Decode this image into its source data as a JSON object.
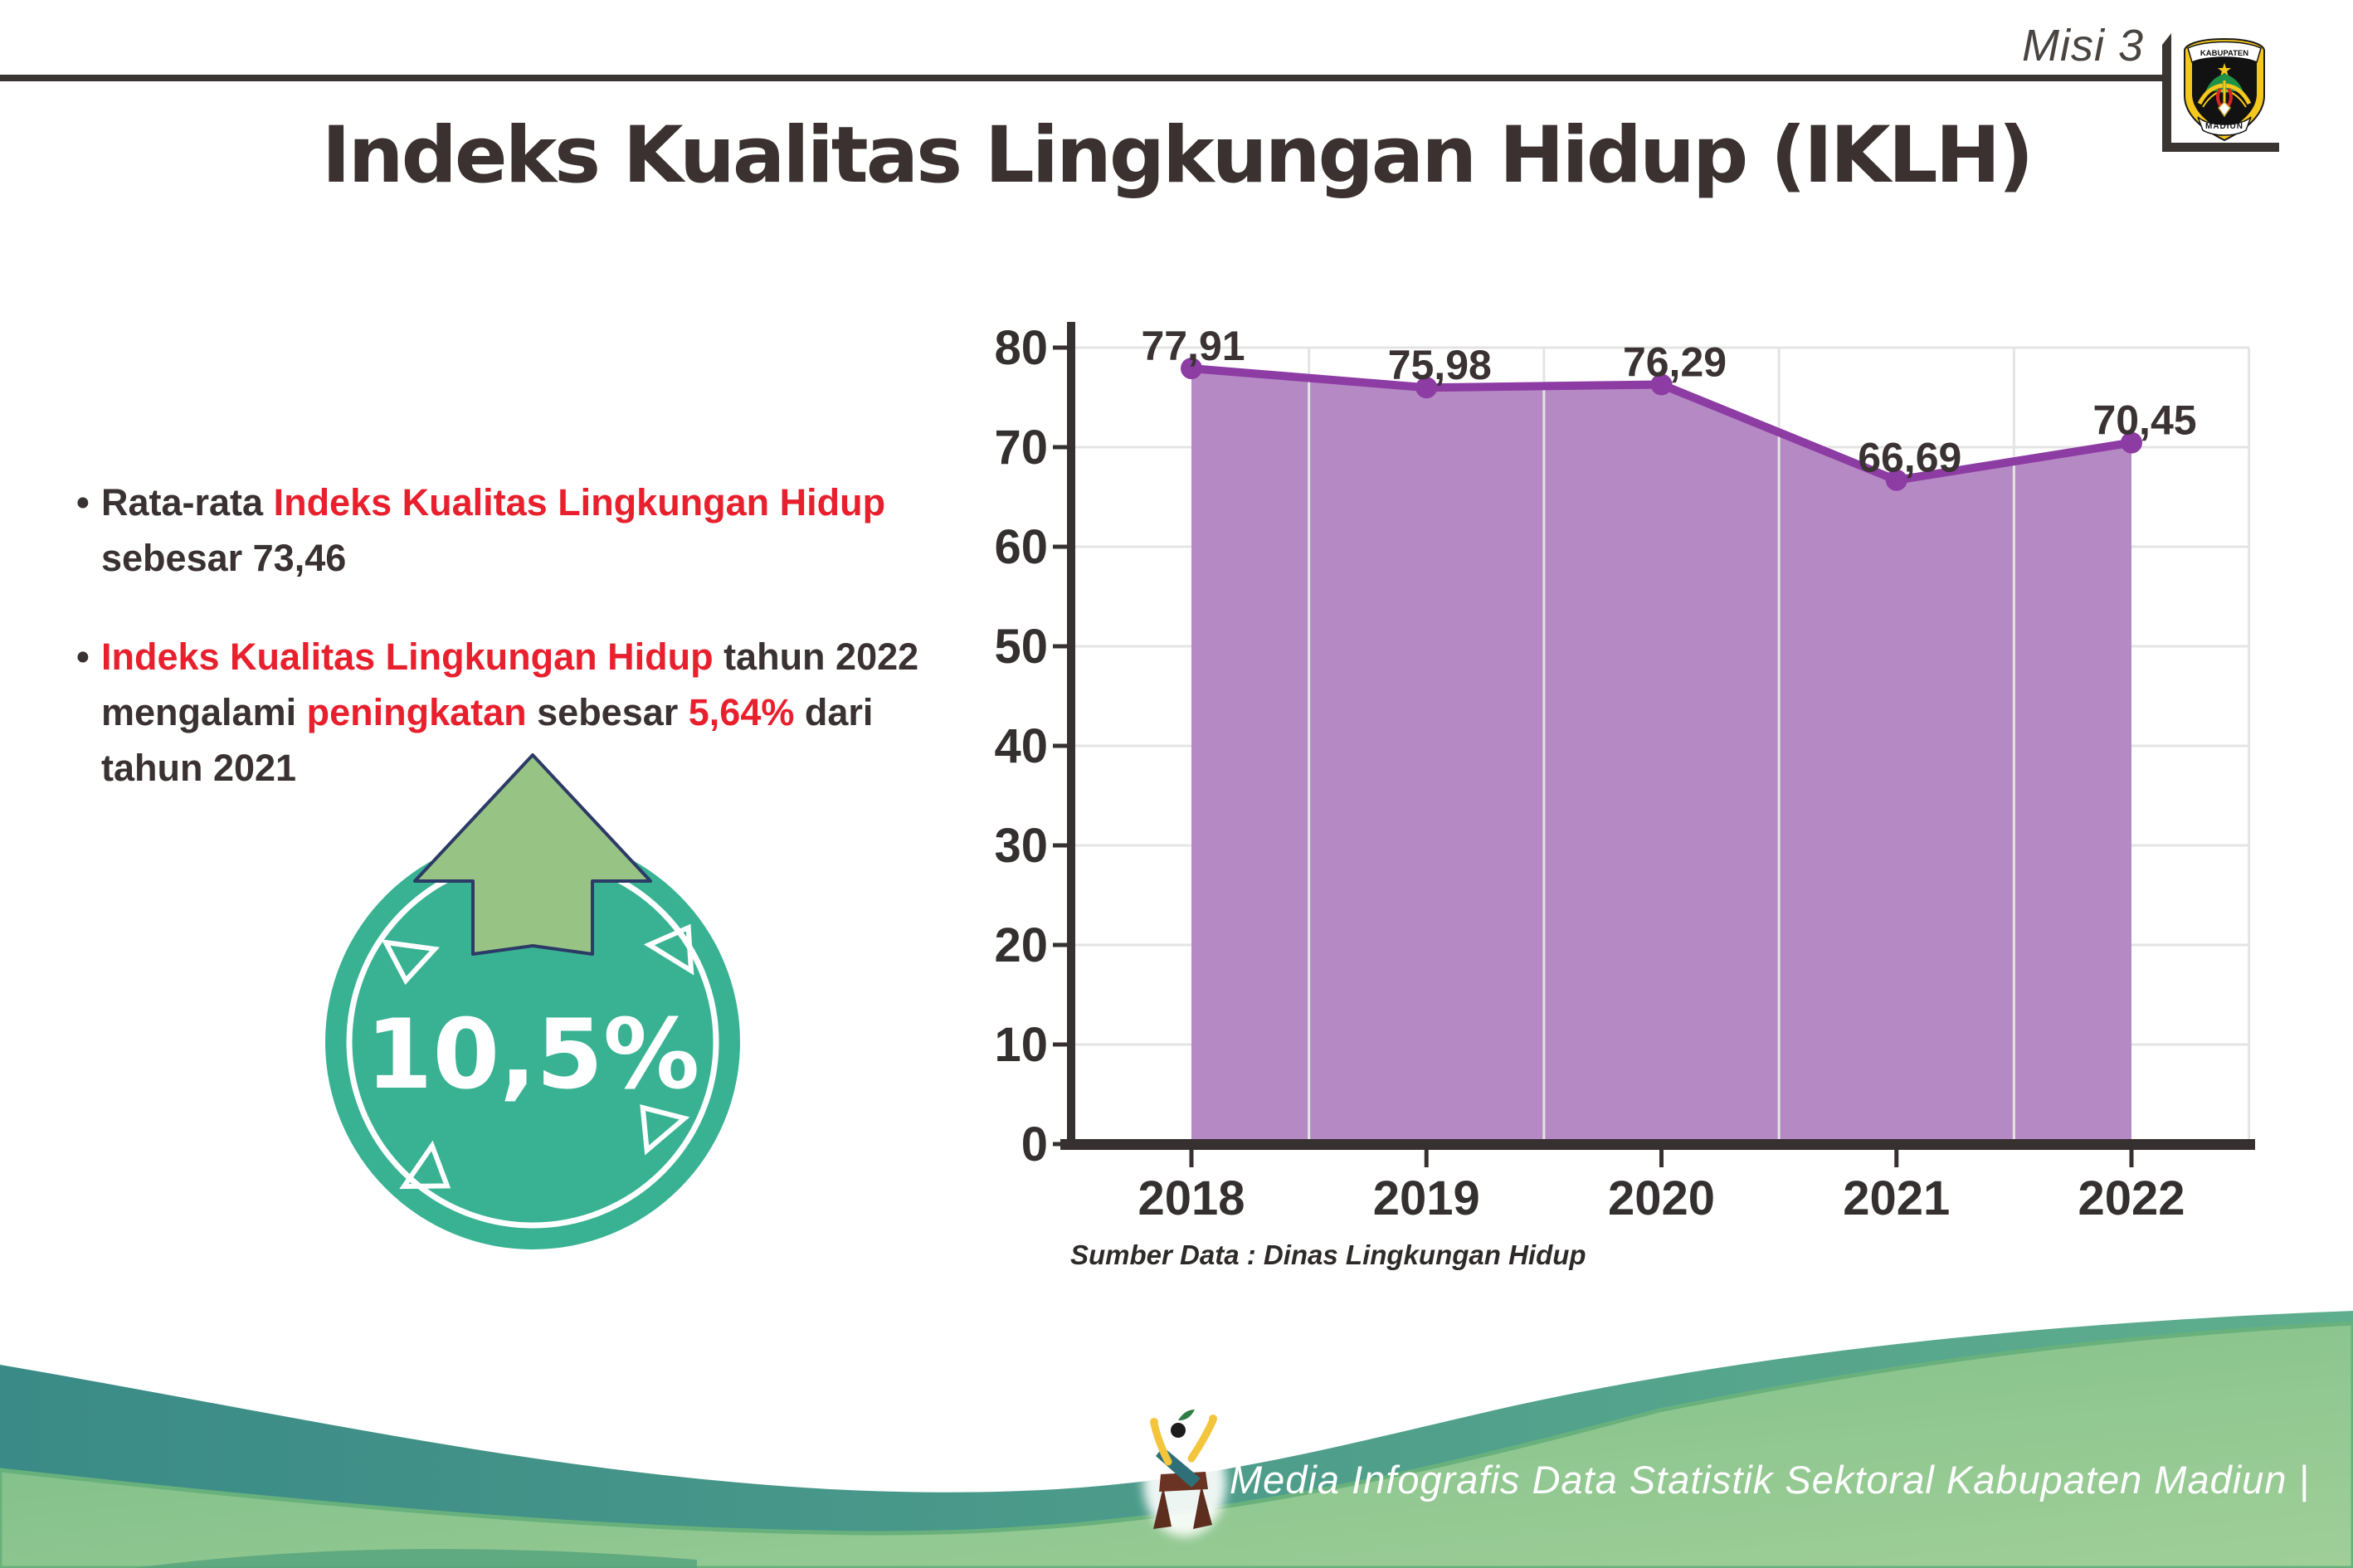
{
  "header": {
    "misi_label": "Misi 3"
  },
  "logo": {
    "top_text": "KABUPATEN",
    "bottom_text": "MADIUN"
  },
  "title": "Indeks Kualitas Lingkungan Hidup (IKLH)",
  "bullets": [
    {
      "marker": "•",
      "lines": [
        [
          {
            "t": "Rata-rata ",
            "c": "dark"
          },
          {
            "t": "Indeks Kualitas Lingkungan Hidup",
            "c": "red"
          }
        ],
        [
          {
            "t": "sebesar 73,46",
            "c": "dark"
          }
        ]
      ]
    },
    {
      "marker": "•",
      "lines": [
        [
          {
            "t": "Indeks Kualitas Lingkungan Hidup",
            "c": "red"
          },
          {
            "t": " tahun 2022",
            "c": "dark"
          }
        ],
        [
          {
            "t": "mengalami ",
            "c": "dark"
          },
          {
            "t": "peningkatan",
            "c": "red"
          },
          {
            "t": " sebesar ",
            "c": "dark"
          },
          {
            "t": "5,64%",
            "c": "red"
          },
          {
            "t": " dari",
            "c": "dark"
          }
        ],
        [
          {
            "t": "tahun 2021",
            "c": "dark"
          }
        ]
      ]
    }
  ],
  "badge": {
    "value": "10,5%"
  },
  "chart_data": {
    "type": "area",
    "categories": [
      "2018",
      "2019",
      "2020",
      "2021",
      "2022"
    ],
    "values": [
      77.91,
      75.98,
      76.29,
      66.69,
      70.45
    ],
    "point_labels": [
      "77,91",
      "75,98",
      "76,29",
      "66,69",
      "70,45"
    ],
    "title": "",
    "xlabel": "",
    "ylabel": "",
    "ylim": [
      0,
      80
    ],
    "yticks": [
      0,
      10,
      20,
      30,
      40,
      50,
      60,
      70,
      80
    ],
    "grid": true,
    "legend": false,
    "source": "Sumber Data : Dinas Lingkungan Hidup",
    "colors": {
      "area_fill": "#b58ac4",
      "line": "#8d3ca3",
      "axis": "#373030",
      "gridline": "#e4e4e4",
      "label": "#3a3233",
      "tick_label": "#343030"
    }
  },
  "footer": {
    "credit": "Media Infografis Data Statistik Sektoral Kabupaten Madiun |"
  },
  "colors": {
    "red_accent": "#e8202d",
    "text_dark": "#3a3132",
    "badge_teal": "#38b293",
    "arrow_green": "#97c484",
    "arrow_outline": "#2c3a66",
    "footer_teal_start": "#3a8a87",
    "footer_teal_end": "#5fae8e",
    "footer_green_start": "#79bb85",
    "footer_green_end": "#a0cf98",
    "header_line": "#3a3433",
    "title_color": "#3b3130"
  }
}
